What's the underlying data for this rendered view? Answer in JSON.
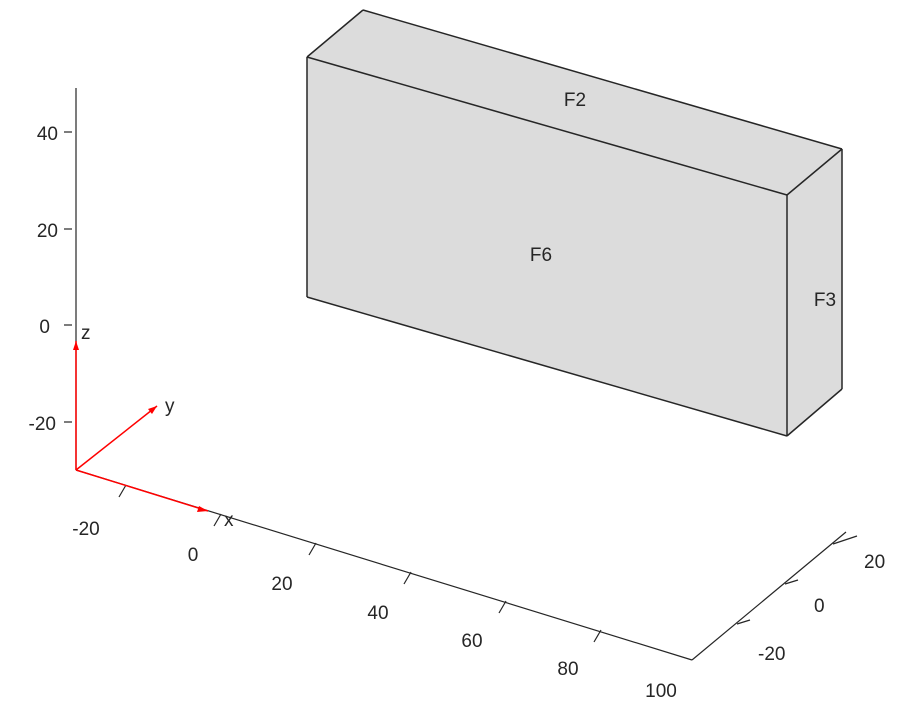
{
  "axes": {
    "z": {
      "ticks": [
        "40",
        "20",
        "0",
        "-20"
      ]
    },
    "x": {
      "ticks": [
        "-20",
        "0",
        "20",
        "40",
        "60",
        "80",
        "100"
      ]
    },
    "y": {
      "ticks": [
        "20",
        "0",
        "-20"
      ]
    }
  },
  "geometry": {
    "faces": [
      {
        "id": "F2",
        "label": "F2"
      },
      {
        "id": "F6",
        "label": "F6"
      },
      {
        "id": "F3",
        "label": "F3"
      }
    ],
    "face_color": "#dcdcdc",
    "edge_color": "#262626"
  },
  "triad": {
    "color": "#ff0000",
    "labels": {
      "x": "x",
      "y": "y",
      "z": "z"
    }
  }
}
